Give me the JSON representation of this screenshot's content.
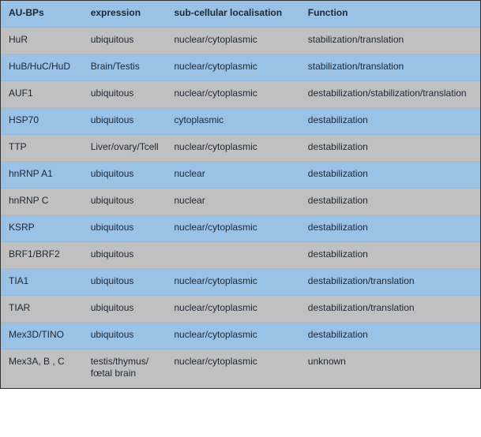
{
  "colors": {
    "blue": "#99c2e6",
    "gray": "#c0c0c0",
    "text": "#1d2633",
    "border": "#333333"
  },
  "columns": [
    "AU-BPs",
    "expression",
    "sub-cellular localisation",
    "Function"
  ],
  "rows": [
    {
      "aubp": "HuR",
      "expression": "ubiquitous",
      "loc": "nuclear/cytoplasmic",
      "func": "stabilization/translation"
    },
    {
      "aubp": "HuB/HuC/HuD",
      "expression": "Brain/Testis",
      "loc": "nuclear/cytoplasmic",
      "func": "stabilization/translation"
    },
    {
      "aubp": "AUF1",
      "expression": "ubiquitous",
      "loc": "nuclear/cytoplasmic",
      "func": "destabilization/stabilization/translation"
    },
    {
      "aubp": "HSP70",
      "expression": "ubiquitous",
      "loc": "cytoplasmic",
      "func": "destabilization"
    },
    {
      "aubp": "TTP",
      "expression": "Liver/ovary/Tcell",
      "loc": "nuclear/cytoplasmic",
      "func": "destabilization"
    },
    {
      "aubp": "hnRNP A1",
      "expression": "ubiquitous",
      "loc": "nuclear",
      "func": "destabilization"
    },
    {
      "aubp": "hnRNP C",
      "expression": "ubiquitous",
      "loc": "nuclear",
      "func": "destabilization"
    },
    {
      "aubp": "KSRP",
      "expression": "ubiquitous",
      "loc": "nuclear/cytoplasmic",
      "func": "destabilization"
    },
    {
      "aubp": "BRF1/BRF2",
      "expression": "ubiquitous",
      "loc": "",
      "func": "destabilization"
    },
    {
      "aubp": "TIA1",
      "expression": "ubiquitous",
      "loc": "nuclear/cytoplasmic",
      "func": "destabilization/translation"
    },
    {
      "aubp": "TIAR",
      "expression": "ubiquitous",
      "loc": "nuclear/cytoplasmic",
      "func": "destabilization/translation"
    },
    {
      "aubp": "Mex3D/TINO",
      "expression": "ubiquitous",
      "loc": "nuclear/cytoplasmic",
      "func": "destabilization"
    },
    {
      "aubp": "Mex3A, B , C",
      "expression": "testis/thymus/ fœtal brain",
      "loc": "nuclear/cytoplasmic",
      "func": "unknown"
    }
  ]
}
